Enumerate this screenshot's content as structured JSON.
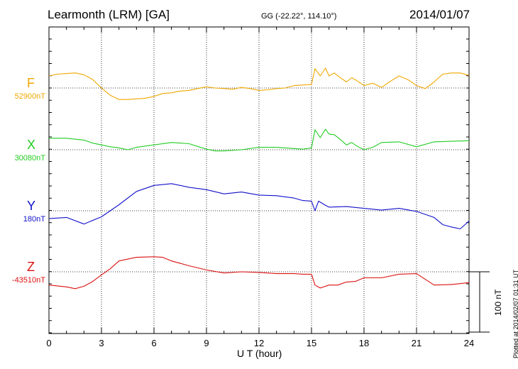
{
  "header": {
    "title": "Learmonth (LRM)  [GA]",
    "coords": "GG (-22.22°, 114.10°)",
    "date": "2014/01/07"
  },
  "footer": {
    "plotted": "Plotted at 2014/02/07 01:31  UT"
  },
  "chart_data": {
    "type": "line",
    "xlabel": "U T (hour)",
    "xlim": [
      0,
      24
    ],
    "xticks": [
      "0",
      "3",
      "6",
      "9",
      "12",
      "15",
      "18",
      "21",
      "24"
    ],
    "scale_bar_label": "100 nT",
    "series": [
      {
        "name": "F",
        "baseline_label": "52900nT",
        "color": "#f0a800",
        "x": [
          0,
          0.5,
          1,
          1.5,
          2,
          2.5,
          3,
          3.5,
          4,
          4.5,
          5,
          5.5,
          6,
          6.5,
          7,
          7.5,
          8,
          8.5,
          9,
          9.5,
          10,
          10.5,
          11,
          11.5,
          12,
          12.5,
          13,
          13.5,
          14,
          14.5,
          15,
          15.2,
          15.5,
          15.8,
          16,
          16.3,
          16.6,
          17,
          17.3,
          17.6,
          18,
          18.5,
          19,
          19.5,
          20,
          20.5,
          21,
          21.5,
          22,
          22.5,
          23,
          23.5,
          24
        ],
        "values": [
          20,
          23,
          24,
          25,
          22,
          14,
          0,
          -12,
          -19,
          -19,
          -18,
          -17,
          -14,
          -9,
          -8,
          -5,
          -4,
          -1,
          2,
          0,
          -1,
          -2,
          1,
          -1,
          -4,
          -3,
          -1,
          0,
          4,
          5,
          6,
          32,
          20,
          33,
          20,
          25,
          18,
          10,
          17,
          12,
          4,
          8,
          1,
          11,
          20,
          14,
          4,
          -1,
          10,
          23,
          25,
          25,
          21
        ]
      },
      {
        "name": "X",
        "baseline_label": "30080nT",
        "color": "#22cc22",
        "x": [
          0,
          1,
          2,
          2.5,
          3,
          3.5,
          4,
          4.5,
          5,
          6,
          7,
          8,
          9,
          9.5,
          10,
          11,
          12,
          13,
          14,
          14.5,
          15,
          15.2,
          15.5,
          15.8,
          16,
          16.3,
          16.6,
          17,
          17.3,
          17.6,
          18,
          18.5,
          19,
          20,
          21,
          22,
          23,
          24
        ],
        "values": [
          19,
          19,
          16,
          11,
          8,
          5,
          3,
          0,
          4,
          8,
          12,
          10,
          1,
          -2,
          -2,
          0,
          4,
          4,
          2,
          1,
          3,
          33,
          20,
          34,
          26,
          25,
          18,
          8,
          12,
          6,
          0,
          4,
          12,
          13,
          5,
          13,
          14,
          15
        ]
      },
      {
        "name": "Y",
        "baseline_label": "180nT",
        "color": "#1111cc",
        "x": [
          0,
          1,
          2,
          3,
          4,
          5,
          6,
          7,
          8,
          9,
          10,
          11,
          12,
          13,
          14,
          14.5,
          15,
          15.2,
          15.4,
          15.8,
          16,
          17,
          18,
          19,
          20,
          21,
          22,
          22.5,
          23,
          23.5,
          24
        ],
        "values": [
          -13,
          -11,
          -22,
          -10,
          10,
          32,
          42,
          45,
          39,
          35,
          28,
          31,
          26,
          25,
          21,
          17,
          16,
          0,
          16,
          9,
          6,
          7,
          4,
          1,
          4,
          -1,
          -11,
          -23,
          -27,
          -30,
          -17
        ]
      },
      {
        "name": "Z",
        "baseline_label": "-43510nT",
        "color": "#dd1111",
        "x": [
          0,
          1,
          1.5,
          2,
          2.5,
          3,
          3.5,
          4,
          5,
          6,
          6.5,
          7,
          8,
          9,
          10,
          11,
          12,
          13,
          14,
          14.5,
          15,
          15.2,
          15.5,
          16,
          16.5,
          17,
          17.5,
          18,
          19,
          20,
          21,
          22,
          23,
          24
        ],
        "values": [
          -22,
          -25,
          -28,
          -24,
          -16,
          -5,
          5,
          18,
          24,
          25,
          24,
          18,
          10,
          3,
          -2,
          0,
          -1,
          -3,
          -3,
          -4,
          -4,
          -22,
          -27,
          -22,
          -22,
          -17,
          -16,
          -10,
          -10,
          -4,
          -3,
          -22,
          -21,
          -18
        ]
      }
    ]
  }
}
